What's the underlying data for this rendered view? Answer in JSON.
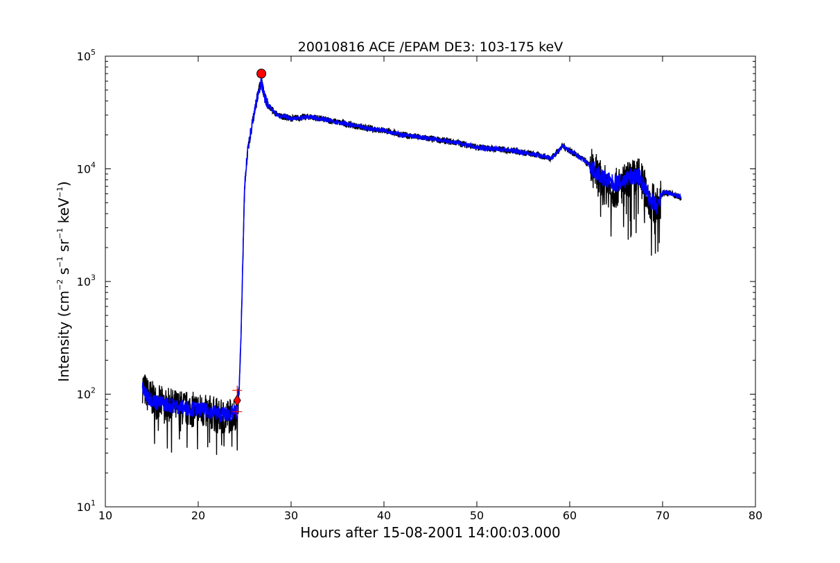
{
  "chart_data": {
    "type": "line",
    "title": "20010816 ACE /EPAM DE3: 103-175 keV",
    "xlabel": "Hours after 15-08-2001 14:00:03.000",
    "ylabel": {
      "prefix": "Intensity (cm",
      "exp1": "−2",
      "part2": " s",
      "exp2": "−1",
      "part3": " sr",
      "exp3": "−1",
      "part4": " keV",
      "exp4": "−1",
      "suffix": ")"
    },
    "x_range": [
      10,
      80
    ],
    "y_range": [
      10,
      100000
    ],
    "y_scale": "log",
    "x_ticks": [
      {
        "value": 10,
        "label": "10"
      },
      {
        "value": 20,
        "label": "20"
      },
      {
        "value": 30,
        "label": "30"
      },
      {
        "value": 40,
        "label": "40"
      },
      {
        "value": 50,
        "label": "50"
      },
      {
        "value": 60,
        "label": "60"
      },
      {
        "value": 70,
        "label": "70"
      },
      {
        "value": 80,
        "label": "80"
      }
    ],
    "y_ticks": [
      {
        "value": 10,
        "base": "10",
        "exp": "1"
      },
      {
        "value": 100,
        "base": "10",
        "exp": "2"
      },
      {
        "value": 1000,
        "base": "10",
        "exp": "3"
      },
      {
        "value": 10000,
        "base": "10",
        "exp": "4"
      },
      {
        "value": 100000,
        "base": "10",
        "exp": "5"
      }
    ],
    "grid": false,
    "series": [
      {
        "color": "#000000",
        "noise": "high",
        "x": [
          14.0,
          14.5,
          15.5,
          17.0,
          18.5,
          20.0,
          21.5,
          22.5,
          23.5,
          24.2,
          24.4,
          24.6,
          24.8,
          25.0,
          25.3,
          25.6,
          26.0,
          26.5,
          26.8,
          27.2,
          27.6,
          28.5,
          30.0,
          32.0,
          34.0,
          36.0,
          38.0,
          40.0,
          42.0,
          44.0,
          46.0,
          48.0,
          50.0,
          52.0,
          54.0,
          56.0,
          58.0,
          59.3,
          60.0,
          61.5,
          62.5,
          63.5,
          64.5,
          65.5,
          66.5,
          67.5,
          68.5,
          69.5,
          70.0,
          71.0,
          72.0
        ],
        "y": [
          120,
          100,
          85,
          78,
          75,
          72,
          68,
          62,
          65,
          70,
          110,
          300,
          1500,
          7000,
          14000,
          20000,
          30000,
          50000,
          60000,
          42000,
          36000,
          30000,
          28000,
          29000,
          27000,
          25000,
          23000,
          22000,
          20000,
          19000,
          18000,
          17000,
          15500,
          15000,
          14500,
          13500,
          12500,
          16000,
          14500,
          12000,
          10000,
          7500,
          6500,
          7000,
          8000,
          8500,
          5500,
          4500,
          6200,
          6000,
          5500
        ]
      },
      {
        "color": "#0000ff",
        "noise": "low",
        "x": [
          14.0,
          14.5,
          15.5,
          17.0,
          18.5,
          20.0,
          21.5,
          22.5,
          23.5,
          24.2,
          24.4,
          24.6,
          24.8,
          25.0,
          25.3,
          25.6,
          26.0,
          26.5,
          26.8,
          27.2,
          27.6,
          28.5,
          30.0,
          32.0,
          34.0,
          36.0,
          38.0,
          40.0,
          42.0,
          44.0,
          46.0,
          48.0,
          50.0,
          52.0,
          54.0,
          56.0,
          58.0,
          59.3,
          60.0,
          61.5,
          62.5,
          63.5,
          64.5,
          65.5,
          66.5,
          67.5,
          68.5,
          69.5,
          70.0,
          71.0,
          72.0
        ],
        "y": [
          110,
          95,
          85,
          80,
          76,
          73,
          70,
          66,
          67,
          70,
          110,
          300,
          1500,
          7000,
          14000,
          20000,
          30000,
          50000,
          58000,
          42000,
          36000,
          30000,
          28000,
          29000,
          27000,
          25000,
          23000,
          22000,
          20000,
          19000,
          18000,
          17000,
          15500,
          15000,
          14500,
          13500,
          12500,
          16000,
          14500,
          12000,
          10000,
          8500,
          7500,
          7500,
          8500,
          8500,
          5500,
          4500,
          6200,
          6000,
          5600
        ]
      }
    ],
    "markers": [
      {
        "shape": "circle",
        "color": "#ff0000",
        "x": 26.8,
        "y": 70000
      },
      {
        "shape": "diamond",
        "color": "#ff0000",
        "x": 24.2,
        "y": 88
      },
      {
        "shape": "plus",
        "color": "#ff0000",
        "x": 24.2,
        "y": 108
      },
      {
        "shape": "plus",
        "color": "#ff0000",
        "x": 24.2,
        "y": 70
      }
    ]
  }
}
